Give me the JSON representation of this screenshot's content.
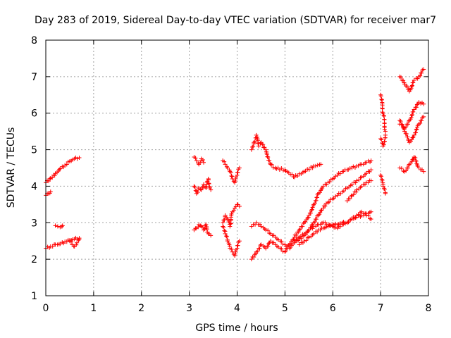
{
  "chart_data": {
    "type": "scatter",
    "title": "Day 283 of 2019, Sidereal Day-to-day VTEC variation (SDTVAR) for receiver mar7",
    "xlabel": "GPS time / hours",
    "ylabel": "SDTVAR / TECUs",
    "xlim": [
      0,
      8
    ],
    "ylim": [
      1,
      8
    ],
    "xticks": [
      0,
      1,
      2,
      3,
      4,
      5,
      6,
      7,
      8
    ],
    "yticks": [
      1,
      2,
      3,
      4,
      5,
      6,
      7,
      8
    ],
    "grid": true,
    "marker": "plus",
    "color": "#ff0000",
    "segments": [
      {
        "x": [
          0.0,
          0.1,
          0.2,
          0.3,
          0.4,
          0.5,
          0.6,
          0.7
        ],
        "y": [
          4.1,
          4.22,
          4.35,
          4.48,
          4.58,
          4.68,
          4.75,
          4.78
        ]
      },
      {
        "x": [
          0.0,
          0.05,
          0.1
        ],
        "y": [
          3.75,
          3.8,
          3.85
        ]
      },
      {
        "x": [
          0.0,
          0.1,
          0.2,
          0.3,
          0.4,
          0.5,
          0.6,
          0.7
        ],
        "y": [
          2.3,
          2.35,
          2.4,
          2.42,
          2.48,
          2.52,
          2.55,
          2.58
        ]
      },
      {
        "x": [
          0.2,
          0.25,
          0.3,
          0.35
        ],
        "y": [
          2.92,
          2.9,
          2.88,
          2.92
        ]
      },
      {
        "x": [
          0.5,
          0.55,
          0.6,
          0.65,
          0.7
        ],
        "y": [
          2.5,
          2.4,
          2.35,
          2.45,
          2.55
        ]
      },
      {
        "x": [
          3.1,
          3.15,
          3.2,
          3.25,
          3.3
        ],
        "y": [
          4.8,
          4.7,
          4.6,
          4.75,
          4.65
        ]
      },
      {
        "x": [
          3.1,
          3.15,
          3.2,
          3.25,
          3.3,
          3.35,
          3.4,
          3.45
        ],
        "y": [
          4.0,
          3.8,
          3.95,
          3.9,
          4.05,
          3.95,
          4.2,
          3.9
        ]
      },
      {
        "x": [
          3.1,
          3.15,
          3.2,
          3.25,
          3.3,
          3.35,
          3.4,
          3.45
        ],
        "y": [
          2.8,
          2.85,
          2.95,
          2.9,
          2.8,
          2.95,
          2.7,
          2.65
        ]
      },
      {
        "x": [
          3.7,
          3.75,
          3.8,
          3.85,
          3.9,
          3.95,
          4.0,
          4.05
        ],
        "y": [
          4.7,
          4.6,
          4.5,
          4.4,
          4.2,
          4.1,
          4.3,
          4.5
        ]
      },
      {
        "x": [
          3.7,
          3.75,
          3.8,
          3.85,
          3.9,
          3.95,
          4.0,
          4.05
        ],
        "y": [
          3.0,
          3.2,
          3.1,
          2.9,
          3.3,
          3.4,
          3.5,
          3.45
        ]
      },
      {
        "x": [
          3.7,
          3.75,
          3.8,
          3.85,
          3.9,
          3.95,
          4.0,
          4.05
        ],
        "y": [
          2.9,
          2.7,
          2.5,
          2.3,
          2.2,
          2.1,
          2.3,
          2.5
        ]
      },
      {
        "x": [
          4.3,
          4.35,
          4.4,
          4.45,
          4.5,
          4.6,
          4.7,
          4.8,
          5.0,
          5.2,
          5.4,
          5.6,
          5.75
        ],
        "y": [
          5.0,
          5.2,
          5.4,
          5.1,
          5.2,
          5.0,
          4.6,
          4.5,
          4.45,
          4.25,
          4.4,
          4.55,
          4.6
        ]
      },
      {
        "x": [
          4.3,
          4.4,
          4.5,
          4.6,
          4.7,
          4.8,
          4.9,
          5.0,
          5.1,
          5.2,
          5.3,
          5.4,
          5.5,
          5.6,
          5.7,
          5.8,
          5.9,
          6.0,
          6.1,
          6.2,
          6.3,
          6.4,
          6.5,
          6.6,
          6.7,
          6.8
        ],
        "y": [
          2.9,
          3.0,
          2.9,
          2.8,
          2.7,
          2.6,
          2.5,
          2.4,
          2.3,
          2.45,
          2.6,
          2.7,
          2.8,
          2.9,
          2.95,
          3.0,
          2.95,
          2.9,
          2.85,
          2.95,
          3.0,
          3.1,
          3.2,
          3.3,
          3.2,
          3.1
        ]
      },
      {
        "x": [
          4.3,
          4.4,
          4.5,
          4.6,
          4.7,
          4.8,
          4.9,
          5.0,
          5.1,
          5.2,
          5.3,
          5.4,
          5.5,
          5.6,
          5.7,
          5.8,
          5.9,
          6.0,
          6.1,
          6.2,
          6.3,
          6.4,
          6.5,
          6.6,
          6.7,
          6.8
        ],
        "y": [
          2.0,
          2.2,
          2.4,
          2.3,
          2.5,
          2.4,
          2.3,
          2.2,
          2.4,
          2.6,
          2.8,
          3.0,
          3.2,
          3.5,
          3.8,
          4.0,
          4.1,
          4.2,
          4.3,
          4.4,
          4.45,
          4.5,
          4.55,
          4.6,
          4.65,
          4.7
        ]
      },
      {
        "x": [
          5.2,
          5.3,
          5.4,
          5.5,
          5.6,
          5.7,
          5.8,
          5.9,
          6.0,
          6.1,
          6.2,
          6.3,
          6.4,
          6.5,
          6.6,
          6.7,
          6.8
        ],
        "y": [
          2.5,
          2.55,
          2.65,
          2.8,
          3.0,
          3.2,
          3.4,
          3.55,
          3.65,
          3.75,
          3.85,
          3.95,
          4.05,
          4.15,
          4.25,
          4.35,
          4.45
        ]
      },
      {
        "x": [
          5.3,
          5.4,
          5.5,
          5.6,
          5.7,
          5.8,
          5.9,
          6.0,
          6.1,
          6.2,
          6.3,
          6.4,
          6.5,
          6.6,
          6.7,
          6.8
        ],
        "y": [
          2.4,
          2.5,
          2.6,
          2.7,
          2.8,
          2.85,
          2.9,
          2.95,
          2.95,
          3.0,
          3.0,
          3.1,
          3.15,
          3.2,
          3.25,
          3.3
        ]
      },
      {
        "x": [
          6.3,
          6.4,
          6.5,
          6.6,
          6.7,
          6.8
        ],
        "y": [
          3.6,
          3.75,
          3.9,
          4.0,
          4.1,
          4.15
        ]
      },
      {
        "x": [
          7.0,
          7.05,
          7.1
        ],
        "y": [
          6.5,
          6.0,
          5.5
        ]
      },
      {
        "x": [
          7.0,
          7.05,
          7.1
        ],
        "y": [
          5.3,
          5.1,
          5.4
        ]
      },
      {
        "x": [
          7.0,
          7.05,
          7.1
        ],
        "y": [
          4.3,
          4.0,
          3.8
        ]
      },
      {
        "x": [
          7.4,
          7.5,
          7.6,
          7.7,
          7.8,
          7.9
        ],
        "y": [
          7.0,
          6.8,
          6.6,
          6.9,
          7.0,
          7.2
        ]
      },
      {
        "x": [
          7.4,
          7.5,
          7.6,
          7.7,
          7.8,
          7.9
        ],
        "y": [
          5.7,
          5.6,
          5.8,
          6.1,
          6.3,
          6.25
        ]
      },
      {
        "x": [
          7.4,
          7.5,
          7.6,
          7.7,
          7.8,
          7.9
        ],
        "y": [
          5.8,
          5.5,
          5.2,
          5.4,
          5.7,
          5.9
        ]
      },
      {
        "x": [
          7.4,
          7.5,
          7.6,
          7.7,
          7.8,
          7.9
        ],
        "y": [
          4.5,
          4.4,
          4.6,
          4.8,
          4.5,
          4.4
        ]
      }
    ]
  }
}
